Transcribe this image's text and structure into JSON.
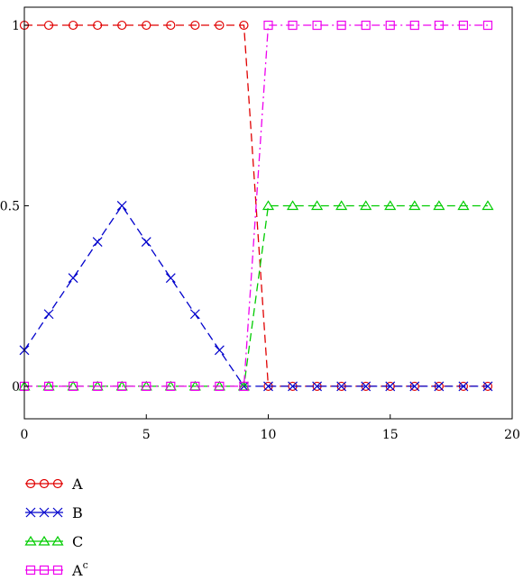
{
  "chart_data": {
    "type": "line",
    "title": "",
    "xlabel": "",
    "ylabel": "",
    "xlim": [
      0,
      20
    ],
    "ylim": [
      -0.09,
      1.05
    ],
    "xticks": [
      0,
      5,
      10,
      15,
      20
    ],
    "xtick_labels": [
      "0",
      "5",
      "10",
      "15",
      "20"
    ],
    "yticks": [
      0,
      0.5,
      1
    ],
    "ytick_labels": [
      "0",
      "0.5",
      "1"
    ],
    "grid": false,
    "legend_position": "bottom-left",
    "series": [
      {
        "name": "A",
        "name_superscript": "",
        "color": "#e00000",
        "marker": "circle",
        "dash": "dashed",
        "x": [
          0,
          1,
          2,
          3,
          4,
          5,
          6,
          7,
          8,
          9,
          10,
          11,
          12,
          13,
          14,
          15,
          16,
          17,
          18,
          19
        ],
        "y": [
          1,
          1,
          1,
          1,
          1,
          1,
          1,
          1,
          1,
          1,
          0,
          0,
          0,
          0,
          0,
          0,
          0,
          0,
          0,
          0
        ]
      },
      {
        "name": "B",
        "name_superscript": "",
        "color": "#0000cc",
        "marker": "x",
        "dash": "dashed",
        "x": [
          0,
          1,
          2,
          3,
          4,
          5,
          6,
          7,
          8,
          9,
          10,
          11,
          12,
          13,
          14,
          15,
          16,
          17,
          18,
          19
        ],
        "y": [
          0.1,
          0.2,
          0.3,
          0.4,
          0.5,
          0.4,
          0.3,
          0.2,
          0.1,
          0,
          0,
          0,
          0,
          0,
          0,
          0,
          0,
          0,
          0,
          0
        ]
      },
      {
        "name": "C",
        "name_superscript": "",
        "color": "#00cc00",
        "marker": "triangle",
        "dash": "dashed",
        "x": [
          0,
          1,
          2,
          3,
          4,
          5,
          6,
          7,
          8,
          9,
          10,
          11,
          12,
          13,
          14,
          15,
          16,
          17,
          18,
          19
        ],
        "y": [
          0,
          0,
          0,
          0,
          0,
          0,
          0,
          0,
          0,
          0,
          0.5,
          0.5,
          0.5,
          0.5,
          0.5,
          0.5,
          0.5,
          0.5,
          0.5,
          0.5
        ]
      },
      {
        "name": "A",
        "name_superscript": "c",
        "color": "#ee00ee",
        "marker": "square",
        "dash": "dashdot",
        "x": [
          0,
          1,
          2,
          3,
          4,
          5,
          6,
          7,
          8,
          9,
          10,
          11,
          12,
          13,
          14,
          15,
          16,
          17,
          18,
          19
        ],
        "y": [
          0,
          0,
          0,
          0,
          0,
          0,
          0,
          0,
          0,
          0,
          1,
          1,
          1,
          1,
          1,
          1,
          1,
          1,
          1,
          1
        ]
      }
    ]
  }
}
